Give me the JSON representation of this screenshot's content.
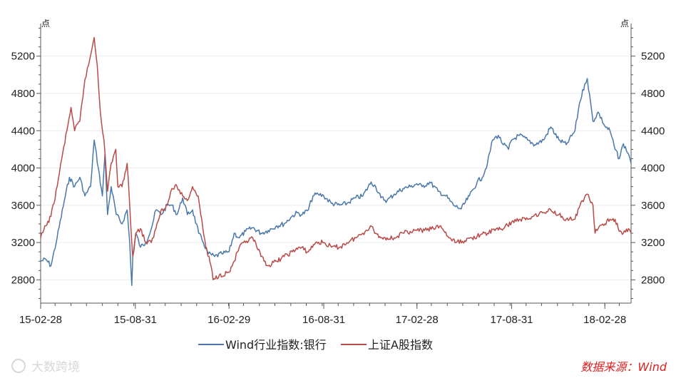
{
  "chart_data": {
    "type": "line",
    "unit_left": "点",
    "unit_right": "点",
    "x_ticks": [
      "15-02-28",
      "15-08-31",
      "16-02-29",
      "16-08-31",
      "17-02-28",
      "17-08-31",
      "18-02-28"
    ],
    "x_range": [
      "2015-02-28",
      "2018-04-20"
    ],
    "y_ticks": [
      2800,
      3200,
      3600,
      4000,
      4400,
      4800,
      5200
    ],
    "ylim": [
      2550,
      5550
    ],
    "grid": "horizontal",
    "legend_position": "bottom",
    "series": [
      {
        "name": "Wind行业指数:银行",
        "color": "#4a78a8",
        "points": [
          [
            "2015-02-28",
            3000
          ],
          [
            "2015-03-10",
            3020
          ],
          [
            "2015-03-20",
            2950
          ],
          [
            "2015-04-01",
            3250
          ],
          [
            "2015-04-15",
            3650
          ],
          [
            "2015-04-25",
            3900
          ],
          [
            "2015-05-05",
            3800
          ],
          [
            "2015-05-15",
            3900
          ],
          [
            "2015-05-25",
            3700
          ],
          [
            "2015-06-05",
            3800
          ],
          [
            "2015-06-12",
            4300
          ],
          [
            "2015-06-20",
            4000
          ],
          [
            "2015-06-28",
            3700
          ],
          [
            "2015-07-03",
            4150
          ],
          [
            "2015-07-08",
            3500
          ],
          [
            "2015-07-15",
            3800
          ],
          [
            "2015-07-25",
            3500
          ],
          [
            "2015-08-05",
            3400
          ],
          [
            "2015-08-15",
            3550
          ],
          [
            "2015-08-20",
            3200
          ],
          [
            "2015-08-24",
            2740
          ],
          [
            "2015-08-26",
            3050
          ],
          [
            "2015-09-01",
            3300
          ],
          [
            "2015-09-10",
            3150
          ],
          [
            "2015-09-20",
            3200
          ],
          [
            "2015-10-01",
            3350
          ],
          [
            "2015-10-10",
            3550
          ],
          [
            "2015-10-20",
            3500
          ],
          [
            "2015-11-01",
            3600
          ],
          [
            "2015-11-10",
            3600
          ],
          [
            "2015-11-20",
            3500
          ],
          [
            "2015-12-01",
            3680
          ],
          [
            "2015-12-10",
            3500
          ],
          [
            "2015-12-20",
            3550
          ],
          [
            "2016-01-01",
            3300
          ],
          [
            "2016-01-10",
            3200
          ],
          [
            "2016-01-20",
            3080
          ],
          [
            "2016-02-01",
            3050
          ],
          [
            "2016-02-15",
            3080
          ],
          [
            "2016-02-29",
            3100
          ],
          [
            "2016-03-10",
            3300
          ],
          [
            "2016-03-20",
            3250
          ],
          [
            "2016-04-01",
            3320
          ],
          [
            "2016-04-15",
            3360
          ],
          [
            "2016-05-01",
            3300
          ],
          [
            "2016-05-15",
            3330
          ],
          [
            "2016-06-01",
            3380
          ],
          [
            "2016-06-15",
            3400
          ],
          [
            "2016-06-30",
            3480
          ],
          [
            "2016-07-10",
            3520
          ],
          [
            "2016-07-20",
            3500
          ],
          [
            "2016-08-01",
            3550
          ],
          [
            "2016-08-10",
            3700
          ],
          [
            "2016-08-20",
            3720
          ],
          [
            "2016-08-31",
            3700
          ],
          [
            "2016-09-15",
            3620
          ],
          [
            "2016-10-01",
            3600
          ],
          [
            "2016-10-15",
            3620
          ],
          [
            "2016-11-01",
            3680
          ],
          [
            "2016-11-15",
            3700
          ],
          [
            "2016-12-01",
            3850
          ],
          [
            "2016-12-10",
            3800
          ],
          [
            "2016-12-20",
            3680
          ],
          [
            "2017-01-01",
            3650
          ],
          [
            "2017-01-15",
            3720
          ],
          [
            "2017-02-01",
            3780
          ],
          [
            "2017-02-15",
            3800
          ],
          [
            "2017-02-28",
            3830
          ],
          [
            "2017-03-10",
            3800
          ],
          [
            "2017-03-25",
            3850
          ],
          [
            "2017-04-10",
            3750
          ],
          [
            "2017-04-25",
            3700
          ],
          [
            "2017-05-10",
            3600
          ],
          [
            "2017-05-25",
            3560
          ],
          [
            "2017-06-10",
            3700
          ],
          [
            "2017-06-25",
            3850
          ],
          [
            "2017-07-05",
            3900
          ],
          [
            "2017-07-15",
            4050
          ],
          [
            "2017-07-25",
            4300
          ],
          [
            "2017-08-05",
            4350
          ],
          [
            "2017-08-15",
            4250
          ],
          [
            "2017-08-25",
            4200
          ],
          [
            "2017-08-31",
            4300
          ],
          [
            "2017-09-15",
            4350
          ],
          [
            "2017-10-01",
            4300
          ],
          [
            "2017-10-15",
            4250
          ],
          [
            "2017-11-01",
            4300
          ],
          [
            "2017-11-15",
            4440
          ],
          [
            "2017-12-01",
            4300
          ],
          [
            "2017-12-15",
            4250
          ],
          [
            "2018-01-01",
            4400
          ],
          [
            "2018-01-10",
            4700
          ],
          [
            "2018-01-20",
            4900
          ],
          [
            "2018-01-25",
            4960
          ],
          [
            "2018-02-05",
            4500
          ],
          [
            "2018-02-15",
            4600
          ],
          [
            "2018-02-28",
            4450
          ],
          [
            "2018-03-10",
            4400
          ],
          [
            "2018-03-20",
            4200
          ],
          [
            "2018-03-28",
            4100
          ],
          [
            "2018-04-05",
            4260
          ],
          [
            "2018-04-15",
            4150
          ],
          [
            "2018-04-20",
            4050
          ]
        ]
      },
      {
        "name": "上证A股指数",
        "color": "#b84a48",
        "points": [
          [
            "2015-02-28",
            3250
          ],
          [
            "2015-03-10",
            3380
          ],
          [
            "2015-03-20",
            3480
          ],
          [
            "2015-04-01",
            3800
          ],
          [
            "2015-04-10",
            4100
          ],
          [
            "2015-04-20",
            4400
          ],
          [
            "2015-04-28",
            4650
          ],
          [
            "2015-05-05",
            4400
          ],
          [
            "2015-05-15",
            4500
          ],
          [
            "2015-05-25",
            4950
          ],
          [
            "2015-06-01",
            5100
          ],
          [
            "2015-06-12",
            5400
          ],
          [
            "2015-06-18",
            5100
          ],
          [
            "2015-06-24",
            4600
          ],
          [
            "2015-07-01",
            4300
          ],
          [
            "2015-07-08",
            3750
          ],
          [
            "2015-07-15",
            4050
          ],
          [
            "2015-07-24",
            4200
          ],
          [
            "2015-07-28",
            3800
          ],
          [
            "2015-08-05",
            3800
          ],
          [
            "2015-08-15",
            4050
          ],
          [
            "2015-08-20",
            3600
          ],
          [
            "2015-08-24",
            3200
          ],
          [
            "2015-08-26",
            3050
          ],
          [
            "2015-09-01",
            3300
          ],
          [
            "2015-09-10",
            3350
          ],
          [
            "2015-09-20",
            3200
          ],
          [
            "2015-10-01",
            3200
          ],
          [
            "2015-10-10",
            3350
          ],
          [
            "2015-10-20",
            3550
          ],
          [
            "2015-11-01",
            3600
          ],
          [
            "2015-11-10",
            3780
          ],
          [
            "2015-11-20",
            3800
          ],
          [
            "2015-12-01",
            3700
          ],
          [
            "2015-12-10",
            3650
          ],
          [
            "2015-12-20",
            3800
          ],
          [
            "2015-12-31",
            3700
          ],
          [
            "2016-01-05",
            3500
          ],
          [
            "2016-01-15",
            3150
          ],
          [
            "2016-01-25",
            2950
          ],
          [
            "2016-01-29",
            2800
          ],
          [
            "2016-02-10",
            2850
          ],
          [
            "2016-02-29",
            2880
          ],
          [
            "2016-03-10",
            3000
          ],
          [
            "2016-03-20",
            3150
          ],
          [
            "2016-04-01",
            3200
          ],
          [
            "2016-04-15",
            3250
          ],
          [
            "2016-05-01",
            3050
          ],
          [
            "2016-05-15",
            2950
          ],
          [
            "2016-06-01",
            3000
          ],
          [
            "2016-06-15",
            3050
          ],
          [
            "2016-07-01",
            3100
          ],
          [
            "2016-07-15",
            3150
          ],
          [
            "2016-08-01",
            3100
          ],
          [
            "2016-08-15",
            3200
          ],
          [
            "2016-08-31",
            3200
          ],
          [
            "2016-09-15",
            3150
          ],
          [
            "2016-10-01",
            3150
          ],
          [
            "2016-10-15",
            3200
          ],
          [
            "2016-11-01",
            3250
          ],
          [
            "2016-11-15",
            3300
          ],
          [
            "2016-11-30",
            3380
          ],
          [
            "2016-12-10",
            3300
          ],
          [
            "2016-12-20",
            3250
          ],
          [
            "2017-01-01",
            3250
          ],
          [
            "2017-01-15",
            3250
          ],
          [
            "2017-02-01",
            3300
          ],
          [
            "2017-02-15",
            3320
          ],
          [
            "2017-02-28",
            3330
          ],
          [
            "2017-03-15",
            3330
          ],
          [
            "2017-04-01",
            3350
          ],
          [
            "2017-04-15",
            3380
          ],
          [
            "2017-05-01",
            3250
          ],
          [
            "2017-05-15",
            3200
          ],
          [
            "2017-06-01",
            3220
          ],
          [
            "2017-06-15",
            3250
          ],
          [
            "2017-07-01",
            3280
          ],
          [
            "2017-07-15",
            3300
          ],
          [
            "2017-08-01",
            3350
          ],
          [
            "2017-08-15",
            3350
          ],
          [
            "2017-08-31",
            3420
          ],
          [
            "2017-09-15",
            3450
          ],
          [
            "2017-10-01",
            3450
          ],
          [
            "2017-10-15",
            3500
          ],
          [
            "2017-11-01",
            3520
          ],
          [
            "2017-11-15",
            3550
          ],
          [
            "2017-12-01",
            3500
          ],
          [
            "2017-12-15",
            3450
          ],
          [
            "2018-01-01",
            3450
          ],
          [
            "2018-01-15",
            3650
          ],
          [
            "2018-01-25",
            3720
          ],
          [
            "2018-02-05",
            3600
          ],
          [
            "2018-02-09",
            3300
          ],
          [
            "2018-02-15",
            3350
          ],
          [
            "2018-02-28",
            3400
          ],
          [
            "2018-03-10",
            3450
          ],
          [
            "2018-03-20",
            3450
          ],
          [
            "2018-03-28",
            3320
          ],
          [
            "2018-04-05",
            3300
          ],
          [
            "2018-04-15",
            3350
          ],
          [
            "2018-04-20",
            3300
          ]
        ]
      }
    ]
  },
  "source": "数据来源：Wind",
  "watermark": "大数跨境"
}
